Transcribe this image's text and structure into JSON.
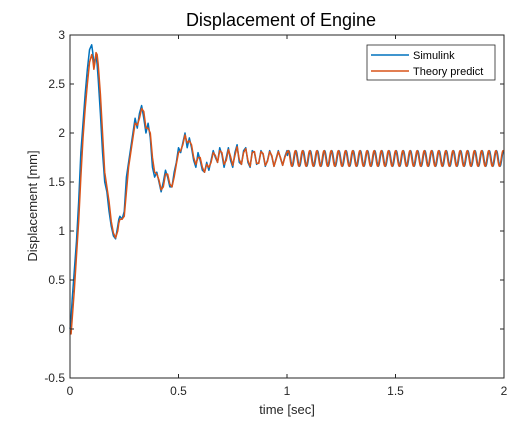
{
  "chart_data": {
    "type": "line",
    "title": "Displacement of Engine",
    "xlabel": "time [sec]",
    "ylabel": "Displacement [mm]",
    "xlim": [
      0,
      2
    ],
    "ylim": [
      -0.5,
      3
    ],
    "x_ticks": [
      "0",
      "0.5",
      "1",
      "1.5",
      "2"
    ],
    "x_tick_values": [
      0,
      0.5,
      1,
      1.5,
      2
    ],
    "y_ticks": [
      "-0.5",
      "0",
      "0.5",
      "1",
      "1.5",
      "2",
      "2.5",
      "3"
    ],
    "y_tick_values": [
      -0.5,
      0,
      0.5,
      1,
      1.5,
      2,
      2.5,
      3
    ],
    "grid": false,
    "legend_position": "top-right",
    "series": [
      {
        "name": "Simulink",
        "color": "#0072BD",
        "x": [
          0,
          0.005,
          0.01,
          0.02,
          0.03,
          0.04,
          0.05,
          0.06,
          0.07,
          0.08,
          0.09,
          0.1,
          0.105,
          0.11,
          0.115,
          0.12,
          0.125,
          0.13,
          0.14,
          0.15,
          0.16,
          0.17,
          0.18,
          0.19,
          0.2,
          0.21,
          0.22,
          0.225,
          0.23,
          0.24,
          0.25,
          0.26,
          0.27,
          0.28,
          0.29,
          0.3,
          0.31,
          0.32,
          0.33,
          0.34,
          0.35,
          0.36,
          0.37,
          0.38,
          0.39,
          0.4,
          0.41,
          0.42,
          0.43,
          0.44,
          0.45,
          0.46,
          0.47,
          0.48,
          0.49,
          0.5,
          0.51,
          0.52,
          0.53,
          0.54,
          0.55,
          0.56,
          0.57,
          0.58,
          0.59,
          0.6,
          0.61,
          0.62,
          0.63,
          0.64,
          0.65,
          0.66,
          0.67,
          0.68,
          0.69,
          0.7,
          0.71,
          0.72,
          0.73,
          0.74,
          0.75,
          0.76,
          0.77,
          0.78,
          0.79,
          0.8,
          0.81,
          0.82,
          0.83,
          0.84,
          0.85,
          0.86,
          0.87,
          0.88,
          0.89,
          0.9,
          0.91,
          0.92,
          0.93,
          0.94,
          0.95,
          0.96,
          0.97,
          0.98,
          0.99,
          1.0
        ],
        "y": [
          0.0,
          0.1,
          0.3,
          0.6,
          0.9,
          1.3,
          1.8,
          2.1,
          2.4,
          2.65,
          2.85,
          2.9,
          2.82,
          2.7,
          2.75,
          2.8,
          2.7,
          2.55,
          2.2,
          1.8,
          1.5,
          1.4,
          1.2,
          1.05,
          0.95,
          0.92,
          1.05,
          1.12,
          1.15,
          1.12,
          1.2,
          1.55,
          1.7,
          1.85,
          2.0,
          2.15,
          2.05,
          2.2,
          2.28,
          2.15,
          2.0,
          2.1,
          1.95,
          1.65,
          1.55,
          1.6,
          1.5,
          1.4,
          1.5,
          1.62,
          1.55,
          1.45,
          1.45,
          1.6,
          1.7,
          1.85,
          1.8,
          1.9,
          2.0,
          1.85,
          1.95,
          1.85,
          1.72,
          1.65,
          1.8,
          1.72,
          1.62,
          1.6,
          1.7,
          1.62,
          1.72,
          1.82,
          1.75,
          1.7,
          1.85,
          1.78,
          1.65,
          1.75,
          1.85,
          1.72,
          1.65,
          1.8,
          1.88,
          1.7,
          1.68,
          1.82,
          1.85,
          1.7,
          1.65,
          1.82,
          1.8,
          1.68,
          1.7,
          1.82,
          1.78,
          1.66,
          1.72,
          1.82,
          1.76,
          1.66,
          1.74,
          1.82,
          1.74,
          1.67,
          1.76,
          1.82
        ]
      },
      {
        "name": "Theory predict",
        "color": "#D95319",
        "x": [
          0,
          0.005,
          0.01,
          0.02,
          0.03,
          0.04,
          0.05,
          0.06,
          0.07,
          0.08,
          0.09,
          0.1,
          0.105,
          0.11,
          0.115,
          0.12,
          0.125,
          0.13,
          0.14,
          0.15,
          0.16,
          0.17,
          0.18,
          0.19,
          0.2,
          0.21,
          0.22,
          0.225,
          0.23,
          0.24,
          0.25,
          0.26,
          0.27,
          0.28,
          0.29,
          0.3,
          0.31,
          0.32,
          0.33,
          0.34,
          0.35,
          0.36,
          0.37,
          0.38,
          0.39,
          0.4,
          0.41,
          0.42,
          0.43,
          0.44,
          0.45,
          0.46,
          0.47,
          0.48,
          0.49,
          0.5,
          0.51,
          0.52,
          0.53,
          0.54,
          0.55,
          0.56,
          0.57,
          0.58,
          0.59,
          0.6,
          0.61,
          0.62,
          0.63,
          0.64,
          0.65,
          0.66,
          0.67,
          0.68,
          0.69,
          0.7,
          0.71,
          0.72,
          0.73,
          0.74,
          0.75,
          0.76,
          0.77,
          0.78,
          0.79,
          0.8,
          0.81,
          0.82,
          0.83,
          0.84,
          0.85,
          0.86,
          0.87,
          0.88,
          0.89,
          0.9,
          0.91,
          0.92,
          0.93,
          0.94,
          0.95,
          0.96,
          0.97,
          0.98,
          0.99,
          1.0
        ],
        "y": [
          -0.05,
          -0.05,
          0.1,
          0.4,
          0.75,
          1.1,
          1.55,
          1.95,
          2.25,
          2.5,
          2.72,
          2.8,
          2.75,
          2.65,
          2.72,
          2.82,
          2.8,
          2.7,
          2.4,
          2.0,
          1.6,
          1.45,
          1.3,
          1.1,
          0.98,
          0.93,
          1.0,
          1.08,
          1.12,
          1.12,
          1.15,
          1.4,
          1.65,
          1.8,
          1.95,
          2.1,
          2.08,
          2.15,
          2.25,
          2.22,
          2.05,
          2.05,
          2.0,
          1.75,
          1.6,
          1.58,
          1.52,
          1.42,
          1.45,
          1.58,
          1.58,
          1.48,
          1.45,
          1.55,
          1.68,
          1.8,
          1.82,
          1.88,
          1.98,
          1.9,
          1.92,
          1.88,
          1.75,
          1.68,
          1.75,
          1.75,
          1.65,
          1.6,
          1.68,
          1.65,
          1.7,
          1.8,
          1.77,
          1.7,
          1.82,
          1.8,
          1.68,
          1.72,
          1.83,
          1.76,
          1.67,
          1.77,
          1.86,
          1.73,
          1.68,
          1.8,
          1.84,
          1.72,
          1.66,
          1.8,
          1.81,
          1.69,
          1.69,
          1.81,
          1.79,
          1.67,
          1.71,
          1.81,
          1.77,
          1.66,
          1.73,
          1.81,
          1.75,
          1.67,
          1.75,
          1.81
        ]
      }
    ],
    "steady_oscillation": {
      "x_start": 1.0,
      "x_end": 2.0,
      "mean": 1.74,
      "amplitude": 0.08,
      "period": 0.033
    }
  }
}
